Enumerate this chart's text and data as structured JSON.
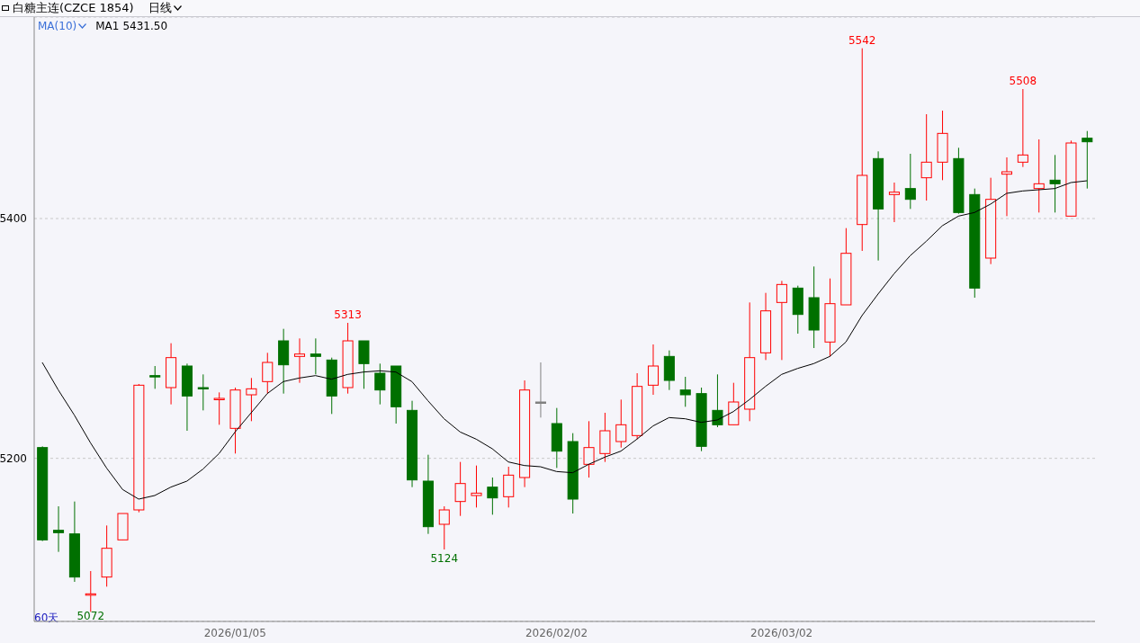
{
  "chart_data": {
    "type": "candlestick",
    "title": "白糖主连(CZCE 1854)",
    "subtitle": "日线",
    "legend_title": "MA(10)",
    "legend": "top left",
    "categories": [
      null,
      null,
      null,
      null,
      null,
      null,
      null,
      null,
      null,
      null,
      null,
      null,
      "2026/01/05",
      null,
      null,
      null,
      null,
      null,
      null,
      null,
      null,
      null,
      null,
      null,
      null,
      null,
      null,
      null,
      null,
      null,
      null,
      null,
      "2026/02/02",
      null,
      null,
      null,
      null,
      null,
      null,
      null,
      null,
      null,
      null,
      null,
      null,
      null,
      "2026/03/02",
      null,
      null,
      null,
      null,
      null,
      null,
      null,
      null,
      null,
      null,
      null,
      null,
      null,
      null,
      null,
      null,
      null,
      null,
      null
    ],
    "ohlc": [
      [
        5209,
        5210,
        5131,
        5132
      ],
      [
        5140,
        5160,
        5122,
        5138
      ],
      [
        5137,
        5164,
        5097,
        5101
      ],
      [
        5086,
        5106,
        5072,
        5087
      ],
      [
        5101,
        5144,
        5093,
        5125
      ],
      [
        5132,
        5154,
        5132,
        5154
      ],
      [
        5157,
        5262,
        5155,
        5261
      ],
      [
        5269,
        5277,
        5258,
        5268
      ],
      [
        5259,
        5296,
        5245,
        5284
      ],
      [
        5277,
        5279,
        5223,
        5252
      ],
      [
        5259,
        5270,
        5240,
        5258
      ],
      [
        5249,
        5255,
        5228,
        5250
      ],
      [
        5225,
        5259,
        5204,
        5257
      ],
      [
        5253,
        5267,
        5231,
        5258
      ],
      [
        5264,
        5288,
        5254,
        5280
      ],
      [
        5298,
        5308,
        5254,
        5278
      ],
      [
        5285,
        5300,
        5263,
        5287
      ],
      [
        5287,
        5300,
        5270,
        5285
      ],
      [
        5282,
        5284,
        5237,
        5252
      ],
      [
        5259,
        5313,
        5254,
        5298
      ],
      [
        5298,
        5298,
        5258,
        5279
      ],
      [
        5271,
        5279,
        5245,
        5257
      ],
      [
        5277,
        5277,
        5229,
        5243
      ],
      [
        5240,
        5248,
        5176,
        5182
      ],
      [
        5181,
        5203,
        5137,
        5143
      ],
      [
        5145,
        5160,
        5124,
        5157
      ],
      [
        5164,
        5197,
        5152,
        5179
      ],
      [
        5169,
        5194,
        5159,
        5171
      ],
      [
        5176,
        5184,
        5153,
        5167
      ],
      [
        5168,
        5193,
        5159,
        5186
      ],
      [
        5184,
        5265,
        5176,
        5257
      ],
      [
        5247,
        5280,
        5234,
        5247
      ],
      [
        5229,
        5242,
        5192,
        5206
      ],
      [
        5214,
        5221,
        5154,
        5166
      ],
      [
        5195,
        5231,
        5184,
        5209
      ],
      [
        5204,
        5238,
        5197,
        5223
      ],
      [
        5214,
        5249,
        5209,
        5228
      ],
      [
        5219,
        5271,
        5216,
        5260
      ],
      [
        5261,
        5295,
        5253,
        5277
      ],
      [
        5285,
        5290,
        5257,
        5265
      ],
      [
        5257,
        5268,
        5243,
        5253
      ],
      [
        5254,
        5259,
        5206,
        5210
      ],
      [
        5240,
        5270,
        5226,
        5228
      ],
      [
        5228,
        5263,
        5228,
        5247
      ],
      [
        5241,
        5330,
        5231,
        5284
      ],
      [
        5288,
        5338,
        5282,
        5323
      ],
      [
        5330,
        5348,
        5282,
        5345
      ],
      [
        5342,
        5344,
        5304,
        5320
      ],
      [
        5334,
        5360,
        5292,
        5307
      ],
      [
        5297,
        5350,
        5285,
        5329
      ],
      [
        5328,
        5392,
        5328,
        5371
      ],
      [
        5395,
        5542,
        5373,
        5436
      ],
      [
        5450,
        5456,
        5365,
        5408
      ],
      [
        5420,
        5430,
        5397,
        5422
      ],
      [
        5425,
        5454,
        5408,
        5416
      ],
      [
        5434,
        5487,
        5415,
        5447
      ],
      [
        5447,
        5490,
        5432,
        5471
      ],
      [
        5450,
        5459,
        5404,
        5405
      ],
      [
        5420,
        5425,
        5334,
        5342
      ],
      [
        5367,
        5434,
        5362,
        5416
      ],
      [
        5437,
        5451,
        5402,
        5439
      ],
      [
        5447,
        5508,
        5443,
        5453
      ],
      [
        5425,
        5466,
        5405,
        5429
      ],
      [
        5432,
        5453,
        5405,
        5429
      ],
      [
        5402,
        5465,
        5402,
        5463
      ],
      [
        5467,
        5473,
        5425,
        5464
      ]
    ],
    "colors": [
      "#007000",
      "#007000",
      "#007000",
      "#ff0000",
      "#ff0000",
      "#ff0000",
      "#ff0000",
      "#007000",
      "#ff0000",
      "#007000",
      "#007000",
      "#ff0000",
      "#ff0000",
      "#ff0000",
      "#ff0000",
      "#007000",
      "#ff0000",
      "#007000",
      "#007000",
      "#ff0000",
      "#007000",
      "#007000",
      "#007000",
      "#007000",
      "#007000",
      "#ff0000",
      "#ff0000",
      "#ff0000",
      "#007000",
      "#ff0000",
      "#ff0000",
      "#808080",
      "#007000",
      "#007000",
      "#ff0000",
      "#ff0000",
      "#ff0000",
      "#ff0000",
      "#ff0000",
      "#007000",
      "#007000",
      "#007000",
      "#007000",
      "#ff0000",
      "#ff0000",
      "#ff0000",
      "#ff0000",
      "#007000",
      "#007000",
      "#ff0000",
      "#ff0000",
      "#ff0000",
      "#007000",
      "#ff0000",
      "#007000",
      "#ff0000",
      "#ff0000",
      "#007000",
      "#007000",
      "#ff0000",
      "#ff0000",
      "#ff0000",
      "#ff0000",
      "#007000",
      "#ff0000",
      "#007000"
    ],
    "series": [
      {
        "name": "MA1",
        "type": "line",
        "color": "#000000",
        "values": [
          5280,
          5257,
          5236,
          5213,
          5192,
          5174,
          5166,
          5169,
          5176,
          5181,
          5191,
          5204,
          5222,
          5238,
          5254,
          5264,
          5267,
          5269,
          5266,
          5270,
          5272,
          5273,
          5272,
          5264,
          5248,
          5233,
          5222,
          5216,
          5208,
          5197,
          5194,
          5193,
          5189,
          5188,
          5195,
          5201,
          5206,
          5216,
          5227,
          5234,
          5233,
          5230,
          5232,
          5239,
          5249,
          5260,
          5270,
          5275,
          5279,
          5285,
          5297,
          5319,
          5337,
          5354,
          5369,
          5381,
          5394,
          5402,
          5405,
          5412,
          5421,
          5423,
          5424,
          5425,
          5430,
          5431.5
        ]
      }
    ],
    "ylim": [
      5064,
      5568
    ],
    "yticks": [
      5200,
      5400
    ],
    "grid": "y",
    "annotations": [
      "60天",
      {
        "text": "5542",
        "y": 5542
      },
      {
        "text": "5313",
        "y": 5313
      },
      {
        "text": "5508",
        "y": 5508
      },
      {
        "text": "5124",
        "y": 5124
      },
      {
        "text": "5072",
        "y": 5072
      },
      "5431.50"
    ]
  }
}
